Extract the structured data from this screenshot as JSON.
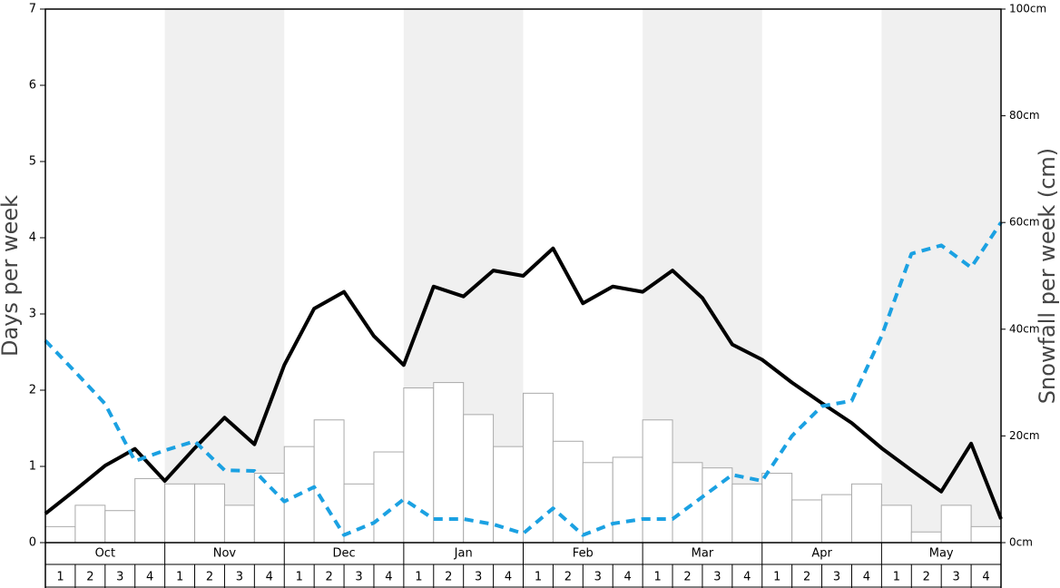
{
  "chart_data": {
    "type": "bar",
    "y_label": "Days per week",
    "y2_label": "Snowfall per week (cm)",
    "months": [
      "Oct",
      "Nov",
      "Dec",
      "Jan",
      "Feb",
      "Mar",
      "Apr",
      "May"
    ],
    "shaded_color": "#f0f0f0",
    "categories": [
      "1",
      "2",
      "3",
      "4",
      "1",
      "2",
      "3",
      "4",
      "1",
      "2",
      "3",
      "4",
      "1",
      "2",
      "3",
      "4",
      "1",
      "2",
      "3",
      "4",
      "1",
      "2",
      "3",
      "4",
      "1",
      "2",
      "3",
      "4",
      "1",
      "2",
      "3",
      "4"
    ],
    "values": [
      3,
      7,
      6,
      12,
      11,
      11,
      7,
      13,
      18,
      23,
      11,
      17,
      29,
      30,
      24,
      18,
      28,
      19,
      15,
      16,
      23,
      15,
      14,
      11,
      13,
      8,
      9,
      11,
      7,
      2,
      7,
      3
    ],
    "bar_color": "#ffffff",
    "bar_axis": "y2",
    "x": [
      0,
      1,
      2,
      3,
      4,
      5,
      6,
      7,
      8,
      9,
      10,
      11,
      12,
      13,
      14,
      15,
      16,
      17,
      18,
      19,
      20,
      21,
      22,
      23,
      24,
      25,
      26,
      27,
      28,
      29,
      30,
      31,
      32
    ],
    "xlim": [
      0,
      32
    ],
    "series": [
      {
        "color": "#000000",
        "dash": false,
        "values": [
          0.38,
          0.69,
          1.01,
          1.23,
          0.81,
          1.24,
          1.64,
          1.29,
          2.33,
          3.07,
          3.29,
          2.71,
          2.33,
          3.36,
          3.23,
          3.57,
          3.5,
          3.86,
          3.14,
          3.36,
          3.29,
          3.57,
          3.21,
          2.6,
          2.4,
          2.1,
          1.83,
          1.57,
          1.24,
          0.95,
          0.67,
          1.3,
          0.31
        ]
      },
      {
        "color": "#1ba1e2",
        "dash": true,
        "values": [
          2.65,
          2.24,
          1.82,
          1.07,
          1.21,
          1.33,
          0.95,
          0.94,
          0.54,
          0.73,
          0.1,
          0.26,
          0.57,
          0.31,
          0.31,
          0.24,
          0.12,
          0.45,
          0.1,
          0.25,
          0.31,
          0.31,
          0.6,
          0.89,
          0.81,
          1.4,
          1.79,
          1.86,
          2.71,
          3.79,
          3.9,
          3.61,
          4.2
        ]
      }
    ],
    "ylim": [
      0,
      7
    ],
    "yticks": [
      0,
      1,
      2,
      3,
      4,
      5,
      6,
      7
    ],
    "y2lim": [
      0,
      100
    ],
    "y2ticks": [
      {
        "value": 0,
        "label": "0cm"
      },
      {
        "value": 20,
        "label": "20cm"
      },
      {
        "value": 40,
        "label": "40cm"
      },
      {
        "value": 60,
        "label": "60cm"
      },
      {
        "value": 80,
        "label": "80cm"
      },
      {
        "value": 100,
        "label": "100cm"
      }
    ]
  }
}
